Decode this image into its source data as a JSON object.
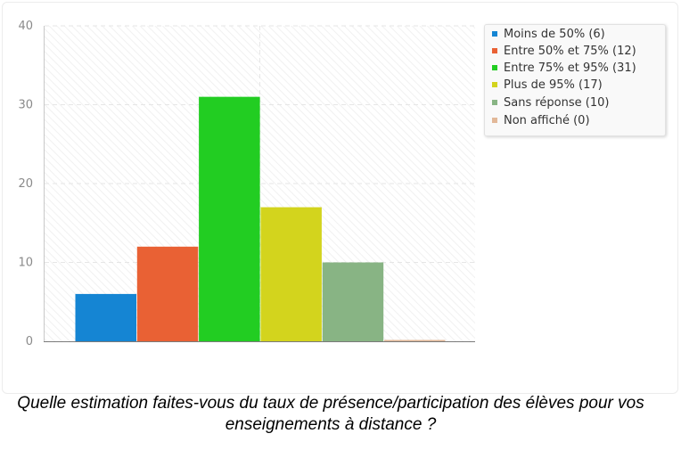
{
  "chart_data": {
    "type": "bar",
    "categories": [
      "Moins de 50%",
      "Entre 50% et 75%",
      "Entre 75% et 95%",
      "Plus de 95%",
      "Sans réponse",
      "Non affiché"
    ],
    "values": [
      6,
      12,
      31,
      17,
      10,
      0
    ],
    "colors": [
      "#1585d3",
      "#e96134",
      "#22cd22",
      "#d3d41d",
      "#88b484",
      "#e2b898"
    ],
    "ylim": [
      0,
      40
    ],
    "yticks": [
      "0",
      "10",
      "20",
      "30",
      "40"
    ],
    "grid": true,
    "legend_position": "top-right",
    "legend": [
      "Moins de 50% (6)",
      "Entre 50% et 75% (12)",
      "Entre 75% et 95% (31)",
      "Plus de 95% (17)",
      "Sans réponse (10)",
      "Non affiché (0)"
    ]
  },
  "caption": "Quelle estimation faites-vous du taux de présence/participation des élèves pour vos enseignements à distance ?"
}
